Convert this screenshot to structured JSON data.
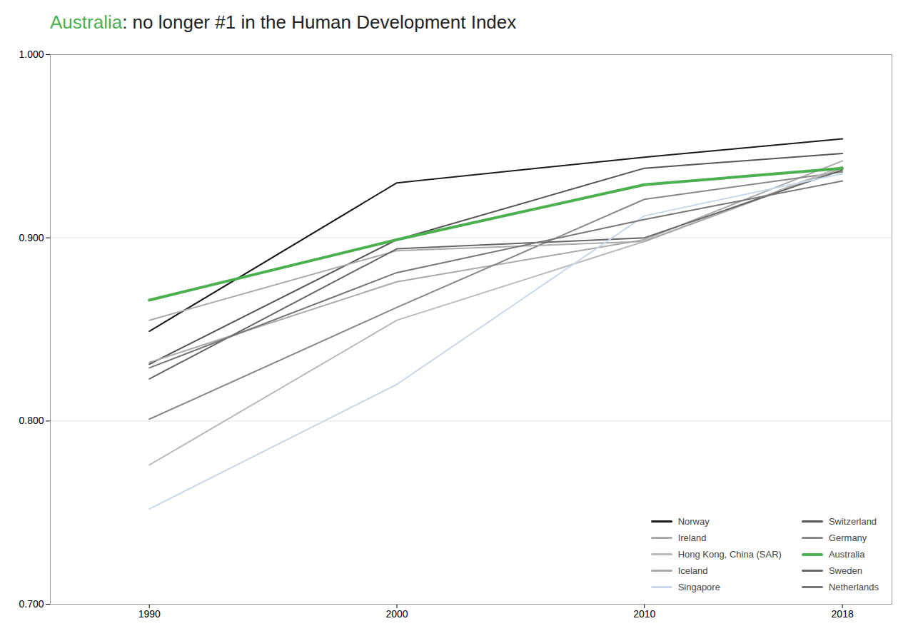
{
  "chart_data": {
    "type": "line",
    "title": "Australia: no longer #1 in the Human Development Index",
    "x": [
      1990,
      2000,
      2010,
      2018
    ],
    "series": [
      {
        "name": "Norway",
        "color": "#1a1a1a",
        "values": [
          0.849,
          0.93,
          0.944,
          0.954
        ]
      },
      {
        "name": "Switzerland",
        "color": "#555555",
        "values": [
          0.831,
          0.899,
          0.938,
          0.946
        ]
      },
      {
        "name": "Ireland",
        "color": "#aaaaaa",
        "values": [
          0.832,
          0.876,
          0.899,
          0.942
        ]
      },
      {
        "name": "Germany",
        "color": "#888888",
        "values": [
          0.801,
          0.862,
          0.921,
          0.936
        ]
      },
      {
        "name": "Hong Kong, China (SAR)",
        "color": "#bbbbbb",
        "values": [
          0.776,
          0.855,
          0.898,
          0.939
        ]
      },
      {
        "name": "Australia",
        "color": "#4caf50",
        "values": [
          0.866,
          0.899,
          0.929,
          0.938
        ]
      },
      {
        "name": "Iceland",
        "color": "#aaaaaa",
        "values": [
          0.855,
          0.893,
          0.898,
          0.938
        ]
      },
      {
        "name": "Sweden",
        "color": "#666666",
        "values": [
          0.823,
          0.894,
          0.9,
          0.937
        ]
      },
      {
        "name": "Singapore",
        "color": "#c8d8e8",
        "values": [
          0.752,
          0.82,
          0.912,
          0.935
        ]
      },
      {
        "name": "Netherlands",
        "color": "#777777",
        "values": [
          0.829,
          0.881,
          0.91,
          0.931
        ]
      }
    ],
    "xlim": [
      1986,
      2020
    ],
    "xticks": [
      1990,
      2000,
      2010,
      2018
    ],
    "ylim": [
      0.7,
      1.0
    ],
    "yticks": [
      {
        "value": 0.7,
        "label": "0.700"
      },
      {
        "value": 0.8,
        "label": "0.800"
      },
      {
        "value": 0.9,
        "label": "0.900"
      },
      {
        "value": 1.0,
        "label": "1.000"
      }
    ],
    "grid": "y",
    "legend": "lower right"
  }
}
